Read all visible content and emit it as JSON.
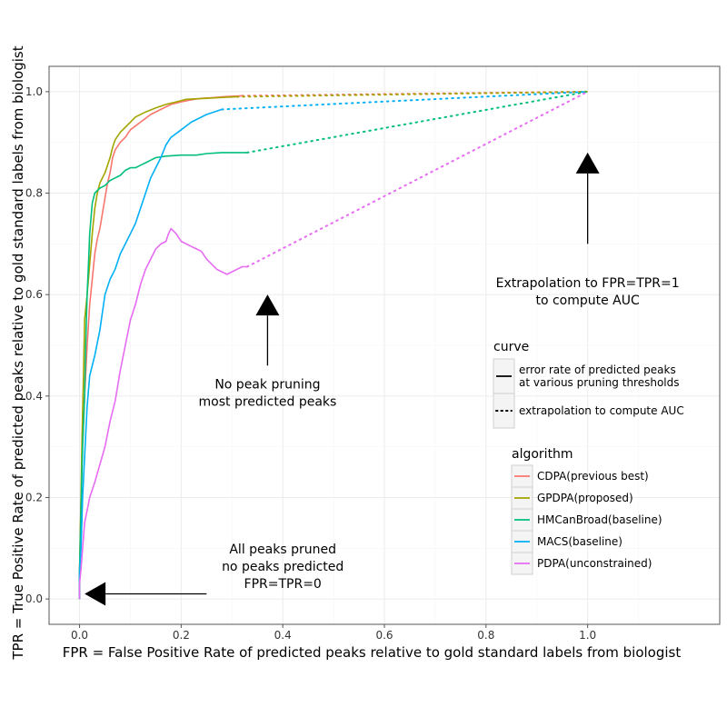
{
  "chart_data": {
    "type": "line",
    "xlabel": "FPR = False Positive Rate of predicted peaks relative to gold standard labels from biologist",
    "ylabel": "TPR = True Positive Rate of predicted peaks relative to gold standard labels from biologist",
    "xlim": [
      -0.06,
      1.26
    ],
    "ylim": [
      -0.05,
      1.05
    ],
    "x_ticks": [
      "0.0",
      "0.2",
      "0.4",
      "0.6",
      "0.8",
      "1.0"
    ],
    "x_tick_values": [
      0,
      0.2,
      0.4,
      0.6,
      0.8,
      1.0
    ],
    "y_ticks": [
      "0.0",
      "0.2",
      "0.4",
      "0.6",
      "0.8",
      "1.0"
    ],
    "y_tick_values": [
      0,
      0.2,
      0.4,
      0.6,
      0.8,
      1.0
    ],
    "grid": true,
    "legend_position": "right",
    "legends": {
      "curve": {
        "title": "curve",
        "entries": [
          {
            "style": "solid",
            "label_line1": "error rate of predicted peaks",
            "label_line2": "at various pruning thresholds"
          },
          {
            "style": "dotted",
            "label_line1": "extrapolation to compute AUC",
            "label_line2": ""
          }
        ]
      },
      "algorithm": {
        "title": "algorithm",
        "entries": [
          "CDPA(previous best)",
          "GPDPA(proposed)",
          "HMCanBroad(baseline)",
          "MACS(baseline)",
          "PDPA(unconstrained)"
        ]
      }
    },
    "series": [
      {
        "name": "CDPA(previous best)",
        "color": "#F8766D",
        "points": [
          [
            0,
            0
          ],
          [
            0,
            0.05
          ],
          [
            0.002,
            0.15
          ],
          [
            0.005,
            0.28
          ],
          [
            0.01,
            0.4
          ],
          [
            0.015,
            0.5
          ],
          [
            0.02,
            0.58
          ],
          [
            0.025,
            0.63
          ],
          [
            0.03,
            0.68
          ],
          [
            0.035,
            0.71
          ],
          [
            0.04,
            0.73
          ],
          [
            0.045,
            0.76
          ],
          [
            0.05,
            0.79
          ],
          [
            0.055,
            0.82
          ],
          [
            0.06,
            0.84
          ],
          [
            0.065,
            0.87
          ],
          [
            0.07,
            0.885
          ],
          [
            0.08,
            0.9
          ],
          [
            0.09,
            0.91
          ],
          [
            0.1,
            0.925
          ],
          [
            0.12,
            0.94
          ],
          [
            0.14,
            0.955
          ],
          [
            0.16,
            0.965
          ],
          [
            0.18,
            0.975
          ],
          [
            0.2,
            0.98
          ],
          [
            0.22,
            0.984
          ],
          [
            0.24,
            0.987
          ],
          [
            0.26,
            0.988
          ],
          [
            0.28,
            0.99
          ],
          [
            0.3,
            0.991
          ],
          [
            0.32,
            0.992
          ]
        ],
        "extrapolation": [
          [
            0.32,
            0.992
          ],
          [
            1.0,
            1.0
          ]
        ]
      },
      {
        "name": "GPDPA(proposed)",
        "color": "#A3A500",
        "points": [
          [
            0,
            0
          ],
          [
            0,
            0.05
          ],
          [
            0.002,
            0.16
          ],
          [
            0.005,
            0.32
          ],
          [
            0.008,
            0.45
          ],
          [
            0.01,
            0.55
          ],
          [
            0.015,
            0.6
          ],
          [
            0.02,
            0.66
          ],
          [
            0.025,
            0.72
          ],
          [
            0.03,
            0.77
          ],
          [
            0.035,
            0.8
          ],
          [
            0.04,
            0.82
          ],
          [
            0.05,
            0.84
          ],
          [
            0.06,
            0.87
          ],
          [
            0.065,
            0.89
          ],
          [
            0.07,
            0.905
          ],
          [
            0.08,
            0.92
          ],
          [
            0.09,
            0.93
          ],
          [
            0.1,
            0.94
          ],
          [
            0.11,
            0.95
          ],
          [
            0.13,
            0.96
          ],
          [
            0.15,
            0.968
          ],
          [
            0.17,
            0.975
          ],
          [
            0.19,
            0.98
          ],
          [
            0.21,
            0.985
          ],
          [
            0.23,
            0.986
          ],
          [
            0.25,
            0.987
          ],
          [
            0.27,
            0.988
          ],
          [
            0.29,
            0.989
          ],
          [
            0.31,
            0.99
          ]
        ],
        "extrapolation": [
          [
            0.31,
            0.99
          ],
          [
            1.0,
            1.0
          ]
        ]
      },
      {
        "name": "HMCanBroad(baseline)",
        "color": "#00BF7D",
        "points": [
          [
            0,
            0
          ],
          [
            0,
            0.05
          ],
          [
            0.003,
            0.18
          ],
          [
            0.006,
            0.3
          ],
          [
            0.01,
            0.4
          ],
          [
            0.012,
            0.5
          ],
          [
            0.015,
            0.6
          ],
          [
            0.018,
            0.67
          ],
          [
            0.02,
            0.72
          ],
          [
            0.025,
            0.78
          ],
          [
            0.03,
            0.8
          ],
          [
            0.04,
            0.81
          ],
          [
            0.05,
            0.815
          ],
          [
            0.06,
            0.825
          ],
          [
            0.07,
            0.83
          ],
          [
            0.08,
            0.835
          ],
          [
            0.09,
            0.845
          ],
          [
            0.1,
            0.85
          ],
          [
            0.11,
            0.85
          ],
          [
            0.12,
            0.855
          ],
          [
            0.13,
            0.86
          ],
          [
            0.14,
            0.865
          ],
          [
            0.15,
            0.87
          ],
          [
            0.17,
            0.873
          ],
          [
            0.2,
            0.875
          ],
          [
            0.23,
            0.875
          ],
          [
            0.25,
            0.878
          ],
          [
            0.28,
            0.88
          ],
          [
            0.33,
            0.88
          ]
        ],
        "extrapolation": [
          [
            0.33,
            0.88
          ],
          [
            1.0,
            1.0
          ]
        ]
      },
      {
        "name": "MACS(baseline)",
        "color": "#00B0F6",
        "points": [
          [
            0,
            0
          ],
          [
            0,
            0.05
          ],
          [
            0.003,
            0.1
          ],
          [
            0.006,
            0.2
          ],
          [
            0.01,
            0.28
          ],
          [
            0.015,
            0.38
          ],
          [
            0.02,
            0.44
          ],
          [
            0.03,
            0.48
          ],
          [
            0.04,
            0.53
          ],
          [
            0.05,
            0.6
          ],
          [
            0.06,
            0.63
          ],
          [
            0.07,
            0.65
          ],
          [
            0.08,
            0.68
          ],
          [
            0.09,
            0.7
          ],
          [
            0.1,
            0.72
          ],
          [
            0.11,
            0.74
          ],
          [
            0.12,
            0.77
          ],
          [
            0.13,
            0.8
          ],
          [
            0.14,
            0.83
          ],
          [
            0.15,
            0.85
          ],
          [
            0.16,
            0.87
          ],
          [
            0.17,
            0.895
          ],
          [
            0.18,
            0.91
          ],
          [
            0.2,
            0.925
          ],
          [
            0.22,
            0.94
          ],
          [
            0.25,
            0.955
          ],
          [
            0.28,
            0.965
          ]
        ],
        "extrapolation": [
          [
            0.28,
            0.965
          ],
          [
            1.0,
            1.0
          ]
        ]
      },
      {
        "name": "PDPA(unconstrained)",
        "color": "#E76BF3",
        "points": [
          [
            0,
            0
          ],
          [
            0,
            0.03
          ],
          [
            0.003,
            0.06
          ],
          [
            0.006,
            0.1
          ],
          [
            0.01,
            0.15
          ],
          [
            0.02,
            0.2
          ],
          [
            0.03,
            0.23
          ],
          [
            0.05,
            0.3
          ],
          [
            0.06,
            0.35
          ],
          [
            0.07,
            0.39
          ],
          [
            0.08,
            0.45
          ],
          [
            0.09,
            0.5
          ],
          [
            0.1,
            0.55
          ],
          [
            0.11,
            0.58
          ],
          [
            0.12,
            0.62
          ],
          [
            0.13,
            0.65
          ],
          [
            0.14,
            0.67
          ],
          [
            0.15,
            0.69
          ],
          [
            0.16,
            0.7
          ],
          [
            0.17,
            0.705
          ],
          [
            0.175,
            0.72
          ],
          [
            0.18,
            0.73
          ],
          [
            0.19,
            0.72
          ],
          [
            0.2,
            0.705
          ],
          [
            0.21,
            0.7
          ],
          [
            0.22,
            0.695
          ],
          [
            0.23,
            0.69
          ],
          [
            0.24,
            0.685
          ],
          [
            0.25,
            0.67
          ],
          [
            0.26,
            0.66
          ],
          [
            0.27,
            0.65
          ],
          [
            0.28,
            0.645
          ],
          [
            0.29,
            0.64
          ],
          [
            0.3,
            0.645
          ],
          [
            0.31,
            0.65
          ],
          [
            0.32,
            0.655
          ],
          [
            0.33,
            0.655
          ]
        ],
        "extrapolation": [
          [
            0.33,
            0.655
          ],
          [
            1.0,
            1.0
          ]
        ]
      }
    ],
    "annotations": [
      {
        "lines": [
          "Extrapolation to FPR=TPR=1",
          "to compute AUC"
        ],
        "x": 1.0,
        "y": 0.615,
        "arrow_from": [
          1.0,
          0.7
        ],
        "arrow_to": [
          1.0,
          0.88
        ]
      },
      {
        "lines": [
          "No peak pruning",
          "most predicted peaks"
        ],
        "x": 0.37,
        "y": 0.415,
        "arrow_from": [
          0.37,
          0.46
        ],
        "arrow_to": [
          0.37,
          0.6
        ]
      },
      {
        "lines": [
          "All peaks pruned",
          "no peaks predicted",
          "FPR=TPR=0"
        ],
        "x": 0.4,
        "y": 0.09,
        "arrow_from": [
          0.25,
          0.01
        ],
        "arrow_to": [
          0.01,
          0.01
        ]
      }
    ]
  }
}
